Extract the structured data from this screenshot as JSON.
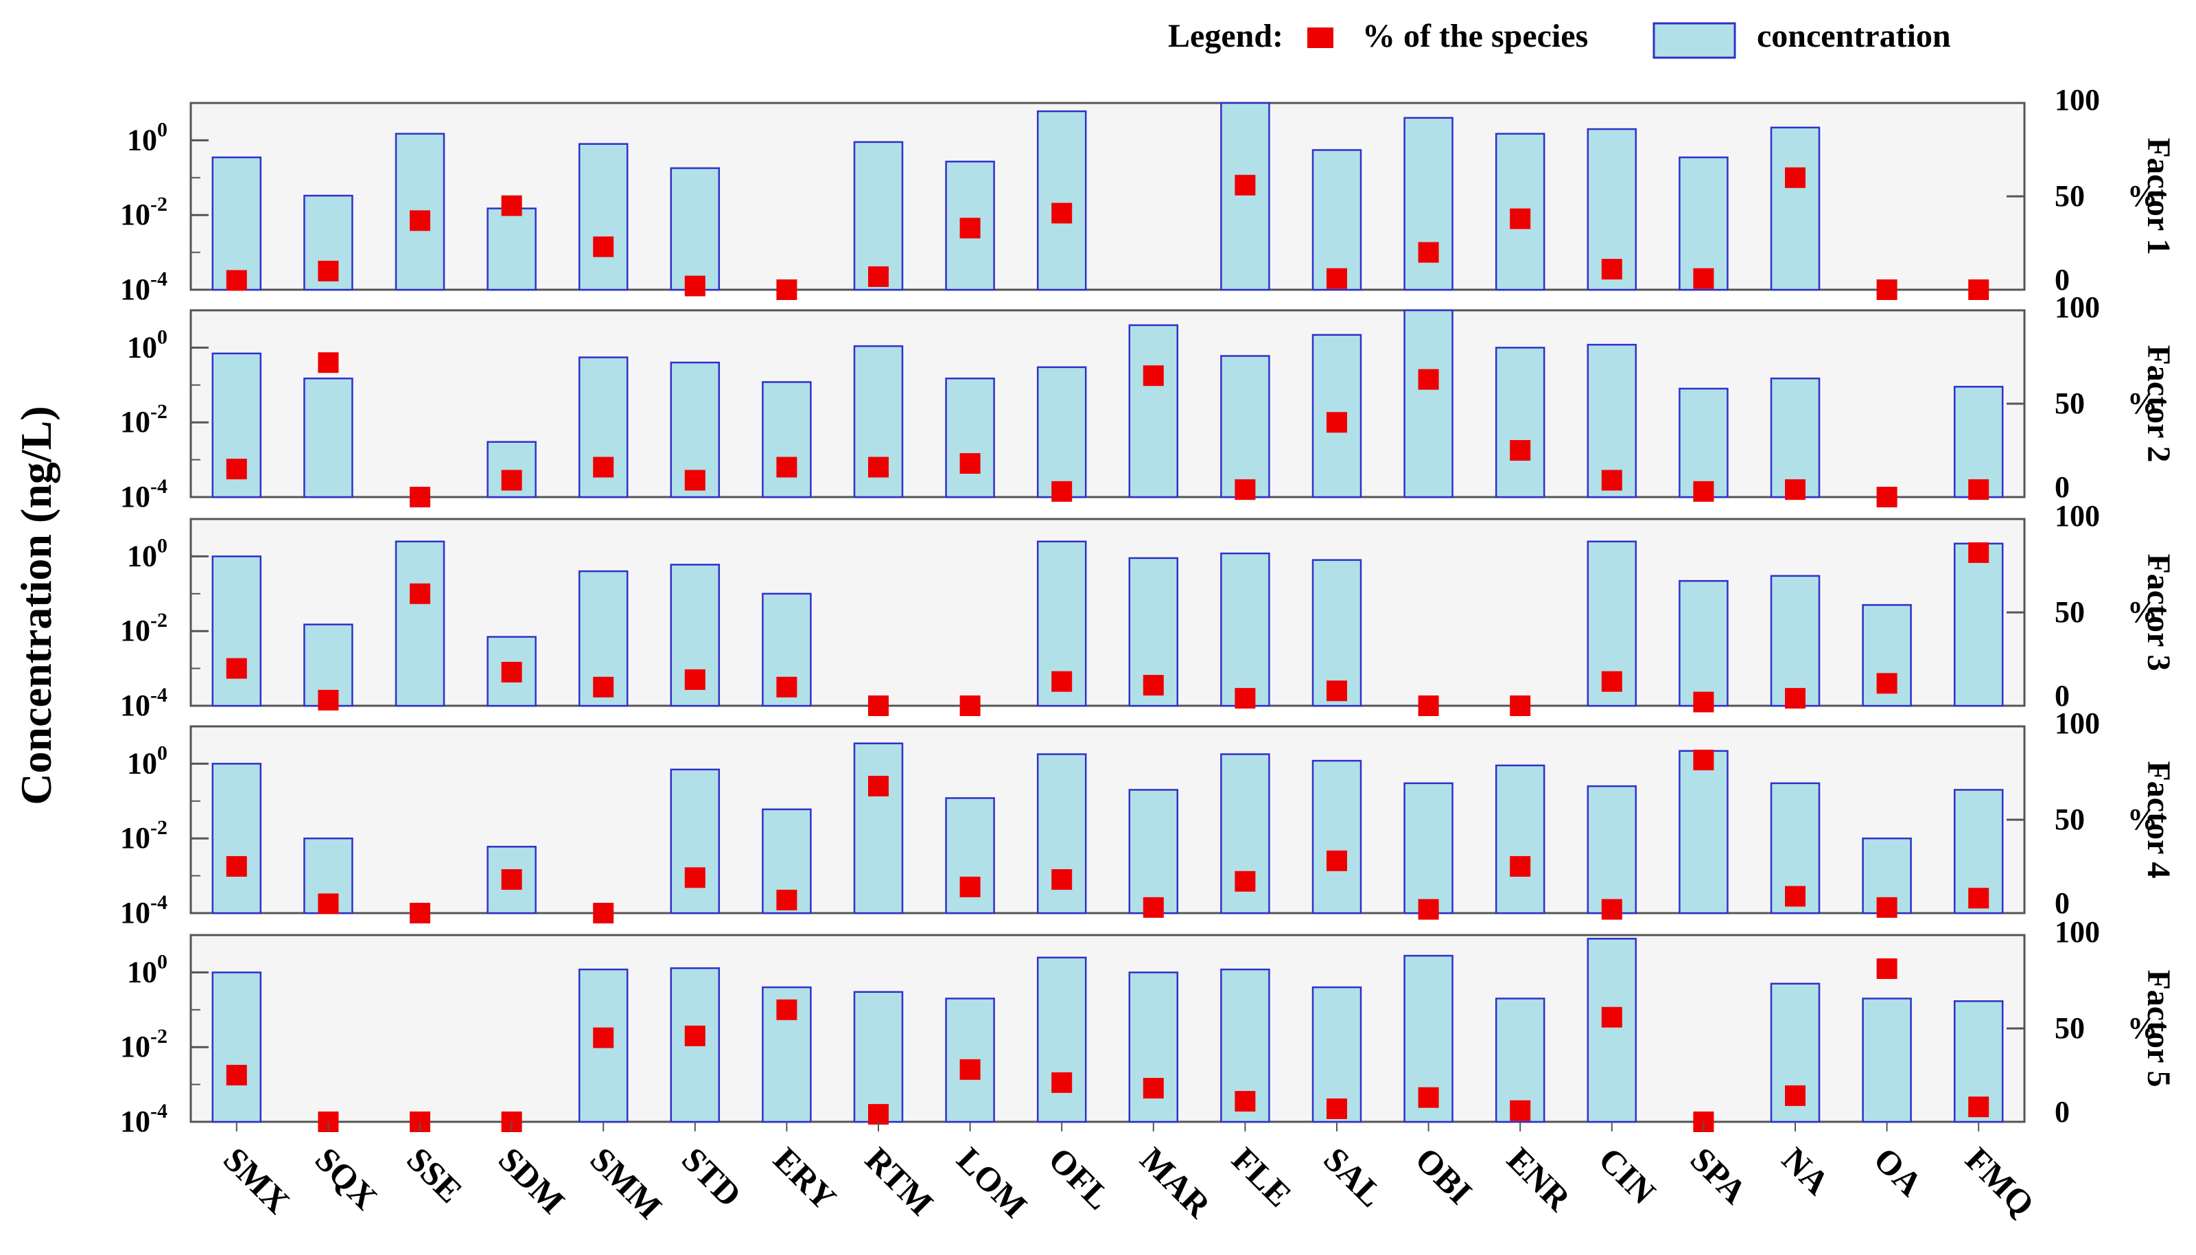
{
  "chart_data": {
    "type": "bar",
    "ylabel": "Concentration (ng/L)",
    "y_scale": "log",
    "ylim": [
      0.0001,
      10
    ],
    "y_ticks": [
      {
        "value": 1,
        "base": "10",
        "exp": "0"
      },
      {
        "value": 0.01,
        "base": "10",
        "exp": "-2"
      },
      {
        "value": 0.0001,
        "base": "10",
        "exp": "-4"
      }
    ],
    "y2_label_unit": "%",
    "y2lim": [
      0,
      100
    ],
    "y2_ticks": [
      {
        "value": 100,
        "label": "100"
      },
      {
        "value": 50,
        "label": "50"
      },
      {
        "value": 0,
        "label": "0"
      }
    ],
    "legend": {
      "prefix": "Legend:",
      "marker_label": "% of the species",
      "bar_label": "concentration",
      "position": "top-right"
    },
    "colors": {
      "bar_fill": "#b2e0e8",
      "bar_edge": "#3030cc",
      "marker": "#ee0000",
      "panel_bg": "#f5f5f5",
      "frame": "#555555"
    },
    "categories": [
      "SMX",
      "SQX",
      "SSE",
      "SDM",
      "SMM",
      "STD",
      "ERY",
      "RTM",
      "LOM",
      "OFL",
      "MAR",
      "FLE",
      "SAL",
      "OBI",
      "ENR",
      "CIN",
      "SPA",
      "NA",
      "OA",
      "FMQ"
    ],
    "panels": [
      {
        "name": "Factor 1",
        "concentration": [
          0.35,
          0.033,
          1.5,
          0.015,
          0.8,
          0.18,
          null,
          0.9,
          0.27,
          6.0,
          null,
          10.0,
          0.55,
          4.0,
          1.5,
          2.0,
          0.35,
          2.2,
          null,
          null
        ],
        "percent": [
          5,
          10,
          37,
          45,
          23,
          2,
          0,
          7,
          33,
          41,
          null,
          56,
          6,
          20,
          38,
          11,
          6,
          60,
          0,
          0
        ]
      },
      {
        "name": "Factor 2",
        "concentration": [
          0.7,
          0.15,
          null,
          0.003,
          0.55,
          0.4,
          0.12,
          1.1,
          0.15,
          0.3,
          4.0,
          0.6,
          2.2,
          12.0,
          1.0,
          1.2,
          0.08,
          0.15,
          null,
          0.09
        ],
        "percent": [
          15,
          72,
          0,
          9,
          16,
          9,
          16,
          16,
          18,
          3,
          65,
          4,
          40,
          63,
          25,
          9,
          3,
          4,
          0,
          4
        ]
      },
      {
        "name": "Factor 3",
        "concentration": [
          1.0,
          0.015,
          2.5,
          0.007,
          0.4,
          0.6,
          0.1,
          null,
          null,
          2.5,
          0.9,
          1.2,
          0.8,
          null,
          null,
          2.5,
          0.22,
          0.3,
          0.05,
          2.2
        ],
        "percent": [
          20,
          3,
          60,
          18,
          10,
          14,
          10,
          0,
          0,
          13,
          11,
          4,
          8,
          0,
          0,
          13,
          2,
          4,
          12,
          82
        ]
      },
      {
        "name": "Factor 4",
        "concentration": [
          1.0,
          0.01,
          null,
          0.006,
          null,
          0.7,
          0.06,
          3.5,
          0.12,
          1.8,
          0.2,
          1.8,
          1.2,
          0.3,
          0.9,
          0.25,
          2.2,
          0.3,
          0.01,
          0.2
        ],
        "percent": [
          25,
          5,
          0,
          18,
          0,
          19,
          7,
          68,
          14,
          18,
          3,
          17,
          28,
          2,
          25,
          2,
          82,
          9,
          3,
          8
        ]
      },
      {
        "name": "Factor 5",
        "concentration": [
          1.0,
          null,
          null,
          null,
          1.2,
          1.3,
          0.4,
          0.3,
          0.2,
          2.5,
          1.0,
          1.2,
          0.4,
          2.8,
          0.2,
          8.0,
          null,
          0.5,
          0.2,
          0.17
        ],
        "percent": [
          25,
          0,
          0,
          0,
          45,
          46,
          60,
          4,
          28,
          21,
          18,
          11,
          7,
          13,
          6,
          56,
          0,
          14,
          82,
          8
        ]
      }
    ]
  }
}
